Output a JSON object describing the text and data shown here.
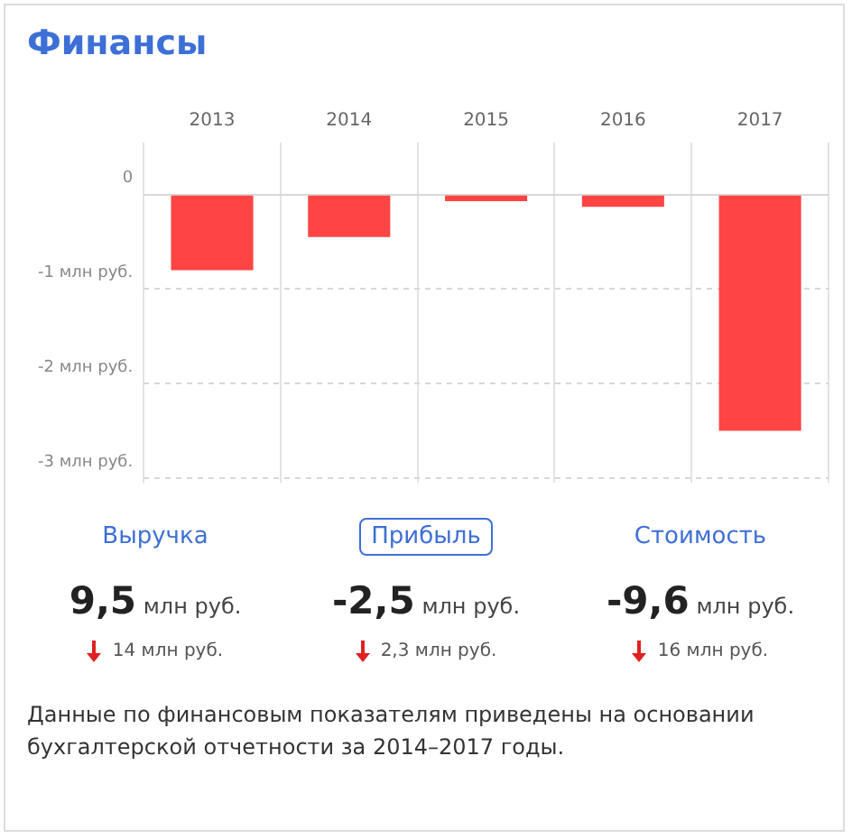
{
  "chart_data": {
    "type": "bar",
    "title": "Финансы",
    "categories": [
      "2013",
      "2014",
      "2015",
      "2016",
      "2017"
    ],
    "values": [
      -0.8,
      -0.45,
      -0.07,
      -0.13,
      -2.5
    ],
    "color": "#ff4444",
    "ylim": [
      -3.05,
      0.55
    ],
    "yticks": [
      {
        "value": 0,
        "label": "0"
      },
      {
        "value": -1,
        "label": "-1 млн руб."
      },
      {
        "value": -2,
        "label": "-2 млн руб."
      },
      {
        "value": -3,
        "label": "-3 млн руб."
      }
    ],
    "grid": true,
    "legend": false,
    "annotations": [
      "Выручка",
      "Прибыль",
      "Стоимость",
      "9,5 млн руб.",
      "-2,5 млн руб.",
      "-9,6 млн руб.",
      "14 млн руб.",
      "2,3 млн руб.",
      "16 млн руб.",
      "Данные по финансовым показателям приведены на основании бухгалтерской отчетности за 2014–2017 годы."
    ]
  }
}
